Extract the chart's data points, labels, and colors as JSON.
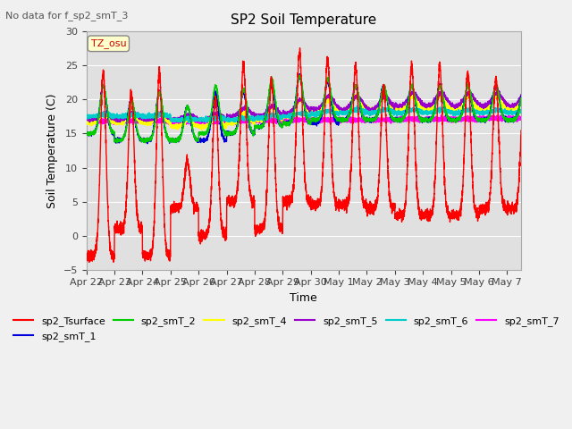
{
  "title": "SP2 Soil Temperature",
  "no_data_text": "No data for f_sp2_smT_3",
  "xlabel": "Time",
  "ylabel": "Soil Temperature (C)",
  "ylim": [
    -5,
    30
  ],
  "yticks": [
    -5,
    0,
    5,
    10,
    15,
    20,
    25,
    30
  ],
  "tz_label": "TZ_osu",
  "x_tick_labels": [
    "Apr 22",
    "Apr 23",
    "Apr 24",
    "Apr 25",
    "Apr 26",
    "Apr 27",
    "Apr 28",
    "Apr 29",
    "Apr 30",
    "May 1",
    "May 2",
    "May 3",
    "May 4",
    "May 5",
    "May 6",
    "May 7"
  ],
  "series_colors": {
    "sp2_Tsurface": "#ff0000",
    "sp2_smT_1": "#0000dd",
    "sp2_smT_2": "#00cc00",
    "sp2_smT_4": "#ffff00",
    "sp2_smT_5": "#9900cc",
    "sp2_smT_6": "#00cccc",
    "sp2_smT_7": "#ff00ff"
  },
  "fig_bg": "#f0f0f0",
  "plot_bg": "#e0e0e0",
  "n_days": 15.5,
  "pts_per_day": 288
}
